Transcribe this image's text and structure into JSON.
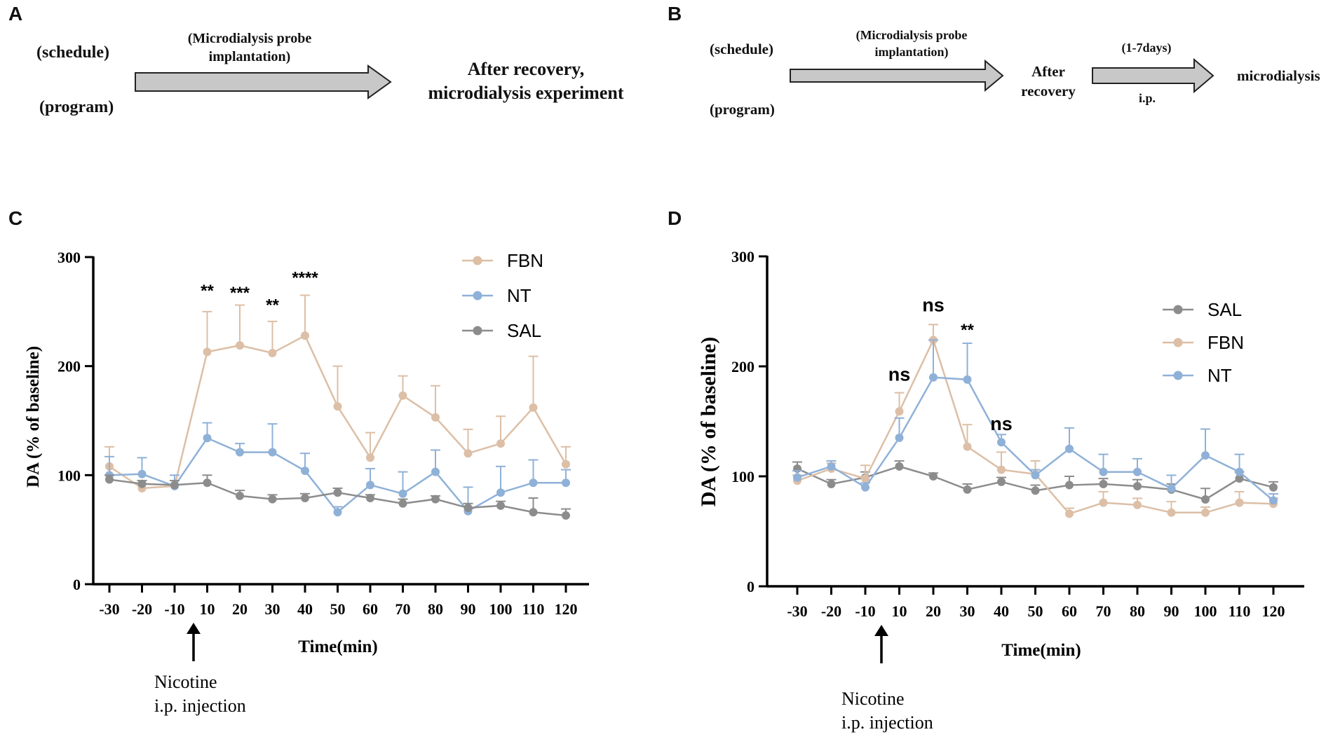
{
  "panels": {
    "a": {
      "letter": "A",
      "schedule": "(schedule)",
      "program": "(program)",
      "arrow_label": [
        "(Microdialysis probe",
        "implantation)"
      ],
      "result": [
        "After recovery,",
        "microdialysis  experiment"
      ]
    },
    "b": {
      "letter": "B",
      "schedule": "(schedule)",
      "program": "(program)",
      "arrow1_label": [
        "(Microdialysis probe",
        "implantation)"
      ],
      "mid": [
        "After",
        "recovery"
      ],
      "arrow2_top": "(1-7days)",
      "arrow2_bottom": "i.p.",
      "end": "microdialysis"
    },
    "c": {
      "letter": "C"
    },
    "d": {
      "letter": "D"
    }
  },
  "colors": {
    "FBN": "#dcbfa6",
    "NT": "#8fb1d8",
    "SAL": "#8c8c8c",
    "arrow_fill": "#c8c8c8"
  },
  "chart_data": [
    {
      "type": "line",
      "panel": "C",
      "title": "",
      "ylabel": "DA  (% of baseline)",
      "xlabel": "Time(min)",
      "categories": [
        "-30",
        "-20",
        "-10",
        "10",
        "20",
        "30",
        "40",
        "50",
        "60",
        "70",
        "80",
        "90",
        "100",
        "110",
        "120"
      ],
      "ylim": [
        0,
        300
      ],
      "yticks": [
        "0",
        "100",
        "200",
        "300"
      ],
      "legend_order": [
        "FBN",
        "NT",
        "SAL"
      ],
      "series": [
        {
          "name": "FBN",
          "values": [
            108,
            88,
            90,
            213,
            219,
            212,
            228,
            163,
            116,
            173,
            153,
            120,
            129,
            162,
            110
          ],
          "errors": [
            18,
            4,
            5,
            37,
            37,
            29,
            37,
            37,
            23,
            18,
            29,
            22,
            25,
            47,
            16
          ]
        },
        {
          "name": "NT",
          "values": [
            100,
            101,
            90,
            134,
            121,
            121,
            104,
            66,
            91,
            83,
            103,
            67,
            84,
            93,
            93
          ],
          "errors": [
            17,
            15,
            10,
            14,
            8,
            26,
            16,
            5,
            15,
            20,
            20,
            22,
            24,
            21,
            12
          ]
        },
        {
          "name": "SAL",
          "values": [
            96,
            92,
            91,
            93,
            81,
            78,
            79,
            84,
            79,
            74,
            78,
            70,
            72,
            66,
            63
          ],
          "errors": [
            4,
            3,
            4,
            7,
            5,
            4,
            4,
            4,
            3,
            4,
            3,
            4,
            4,
            13,
            6
          ]
        }
      ],
      "annotations": [
        {
          "x": "10",
          "text": "**",
          "y": 264
        },
        {
          "x": "20",
          "text": "***",
          "y": 262
        },
        {
          "x": "30",
          "text": "**",
          "y": 251
        },
        {
          "x": "40",
          "text": "****",
          "y": 276
        }
      ],
      "injection_label": [
        "Nicotine",
        "i.p. injection"
      ]
    },
    {
      "type": "line",
      "panel": "D",
      "title": "",
      "ylabel": "DA (% of baseline)",
      "xlabel": "Time(min)",
      "categories": [
        "-30",
        "-20",
        "-10",
        "10",
        "20",
        "30",
        "40",
        "50",
        "60",
        "70",
        "80",
        "90",
        "100",
        "110",
        "120"
      ],
      "ylim": [
        0,
        300
      ],
      "yticks": [
        "0",
        "100",
        "200",
        "300"
      ],
      "legend_order": [
        "SAL",
        "FBN",
        "NT"
      ],
      "series": [
        {
          "name": "SAL",
          "values": [
            107,
            93,
            99,
            109,
            100,
            88,
            95,
            87,
            92,
            93,
            91,
            88,
            79,
            98,
            90
          ],
          "errors": [
            6,
            4,
            5,
            5,
            3,
            5,
            4,
            5,
            8,
            5,
            6,
            5,
            10,
            6,
            5
          ]
        },
        {
          "name": "FBN",
          "values": [
            96,
            107,
            98,
            159,
            224,
            127,
            106,
            102,
            66,
            76,
            74,
            67,
            67,
            76,
            75
          ],
          "errors": [
            5,
            5,
            12,
            17,
            14,
            20,
            16,
            12,
            5,
            10,
            6,
            10,
            5,
            10,
            5
          ]
        },
        {
          "name": "NT",
          "values": [
            99,
            109,
            90,
            135,
            190,
            188,
            131,
            101,
            125,
            104,
            104,
            89,
            119,
            104,
            78
          ],
          "errors": [
            6,
            5,
            4,
            18,
            34,
            33,
            7,
            5,
            19,
            16,
            12,
            12,
            24,
            16,
            6
          ]
        }
      ],
      "annotations": [
        {
          "x": "10",
          "text": "ns",
          "y": 187
        },
        {
          "x": "20",
          "text": "ns",
          "y": 250
        },
        {
          "x": "30",
          "text": "**",
          "y": 228
        },
        {
          "x": "40",
          "text": "ns",
          "y": 142
        }
      ],
      "injection_label": [
        "Nicotine",
        "i.p. injection"
      ]
    }
  ]
}
